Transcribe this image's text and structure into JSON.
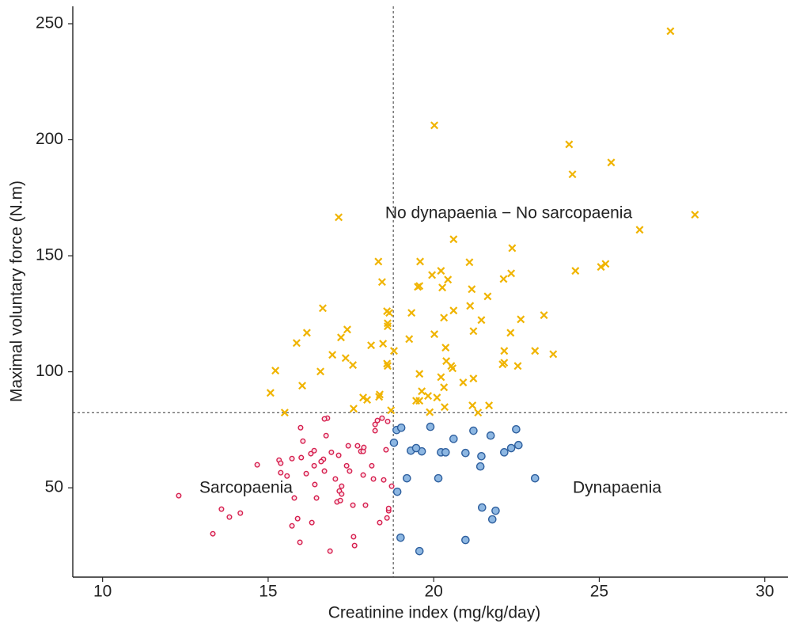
{
  "chart_data": {
    "type": "scatter",
    "xlabel": "Creatinine index (mg/kg/day)",
    "ylabel": "Maximal voluntary force (N.m)",
    "xlim": [
      9.1,
      30.7
    ],
    "ylim": [
      11.5,
      257.5
    ],
    "xticks": [
      10,
      15,
      20,
      25,
      30
    ],
    "yticks": [
      50,
      100,
      150,
      200,
      250
    ],
    "grid": false,
    "reference_lines": {
      "x": 18.78,
      "y": 82.4
    },
    "annotations": [
      "No dynapaenia − No sarcopaenia",
      "Sarcopaenia",
      "Dynapaenia"
    ],
    "series": [
      {
        "color": "#f0b400",
        "marker": "x",
        "x": [
          27.15,
          20.02,
          24.09,
          24.19,
          25.36,
          17.13,
          27.89,
          26.22,
          18.33,
          20.6,
          18.44,
          19.59,
          19.95,
          20.22,
          20.43,
          20.26,
          19.52,
          21.08,
          22.37,
          22.34,
          22.11,
          21.63,
          21.15,
          20.6,
          21.1,
          20.31,
          21.44,
          21.2,
          22.63,
          23.33,
          22.32,
          24.28,
          25.05,
          25.19,
          23.61,
          23.06,
          22.13,
          22.08,
          22.54,
          22.13,
          20.36,
          20.38,
          20.53,
          20.57,
          20.89,
          20.22,
          21.2,
          20.31,
          19.64,
          19.83,
          20.1,
          19.47,
          19.57,
          20.33,
          19.88,
          19.57,
          19.26,
          19.33,
          19.57,
          18.66,
          18.59,
          18.61,
          18.61,
          18.8,
          18.47,
          18.59,
          18.61,
          18.11,
          17.56,
          16.94,
          17.34,
          17.2,
          17.39,
          16.65,
          16.17,
          15.86,
          16.58,
          16.03,
          15.22,
          15.07,
          15.5,
          17.58,
          17.87,
          17.99,
          18.35,
          18.37,
          18.71,
          21.34,
          21.67,
          21.17,
          20.02
        ],
        "y": [
          246.8,
          206.2,
          198.0,
          185.1,
          190.2,
          166.6,
          167.7,
          161.2,
          147.5,
          157.1,
          138.7,
          147.5,
          141.7,
          143.5,
          139.7,
          136.3,
          136.6,
          147.2,
          153.3,
          142.4,
          140.0,
          132.5,
          135.6,
          126.4,
          128.4,
          123.3,
          122.3,
          117.5,
          122.6,
          124.4,
          116.8,
          143.5,
          145.2,
          146.5,
          107.6,
          109.0,
          109.0,
          103.2,
          102.5,
          103.9,
          110.4,
          104.6,
          102.5,
          101.5,
          95.4,
          97.7,
          97.1,
          93.3,
          91.6,
          89.6,
          88.9,
          87.5,
          87.5,
          84.8,
          82.6,
          99.1,
          114.1,
          125.4,
          137.0,
          125.4,
          126.1,
          120.9,
          119.6,
          109.0,
          112.1,
          103.5,
          102.5,
          111.4,
          102.9,
          107.3,
          105.9,
          114.8,
          118.2,
          127.4,
          116.8,
          112.4,
          100.1,
          94.0,
          100.5,
          90.9,
          82.4,
          84.1,
          88.9,
          87.9,
          89.2,
          90.2,
          83.4,
          82.4,
          85.5,
          85.5,
          116.2
        ]
      },
      {
        "color": "#8db7e2",
        "stroke": "#2e5f9e",
        "marker": "o",
        "x": [
          18.88,
          19.02,
          19.9,
          20.6,
          21.2,
          21.72,
          22.49,
          22.56,
          22.34,
          22.13,
          21.44,
          21.41,
          20.96,
          20.22,
          20.36,
          19.64,
          19.31,
          19.47,
          19.19,
          20.14,
          23.06,
          18.8,
          18.9,
          21.46,
          21.87,
          21.77,
          19.0,
          20.96,
          19.57
        ],
        "y": [
          74.9,
          75.9,
          76.3,
          71.1,
          74.6,
          72.5,
          75.2,
          68.4,
          67.1,
          65.3,
          63.6,
          59.2,
          65.0,
          65.3,
          65.3,
          65.7,
          66.0,
          67.1,
          54.1,
          54.1,
          54.1,
          69.4,
          48.3,
          41.5,
          40.1,
          36.4,
          28.5,
          27.5,
          22.7
        ]
      },
      {
        "color": "#fce0ea",
        "stroke": "#d6204e",
        "marker": "o",
        "x": [
          12.3,
          13.33,
          13.59,
          13.83,
          14.16,
          14.67,
          15.33,
          15.38,
          15.57,
          15.79,
          15.89,
          15.96,
          15.98,
          16.05,
          16.0,
          16.15,
          16.29,
          16.32,
          16.39,
          16.39,
          16.41,
          16.46,
          16.7,
          16.67,
          16.75,
          16.79,
          16.7,
          16.87,
          16.91,
          17.03,
          17.08,
          17.13,
          17.15,
          17.18,
          17.22,
          17.22,
          17.37,
          17.42,
          17.46,
          17.58,
          17.61,
          17.56,
          17.7,
          17.8,
          17.87,
          17.87,
          17.94,
          18.18,
          18.23,
          18.23,
          18.3,
          18.44,
          18.49,
          18.37,
          18.56,
          18.64,
          18.59,
          18.61,
          18.64,
          18.13,
          18.73,
          17.89,
          16.6,
          15.72,
          15.72,
          15.38
        ],
        "y": [
          46.6,
          30.2,
          40.8,
          37.4,
          39.1,
          59.9,
          61.9,
          60.6,
          55.1,
          45.6,
          36.7,
          26.5,
          75.9,
          70.1,
          63.0,
          56.1,
          64.7,
          35.0,
          66.0,
          59.5,
          51.4,
          45.6,
          57.2,
          62.3,
          72.5,
          80.0,
          79.7,
          22.7,
          65.3,
          53.8,
          43.9,
          64.0,
          48.6,
          44.5,
          50.7,
          47.3,
          59.5,
          68.1,
          57.2,
          28.9,
          25.1,
          42.5,
          68.1,
          65.7,
          65.7,
          55.5,
          42.5,
          53.8,
          74.6,
          77.3,
          79.0,
          80.0,
          53.4,
          35.0,
          66.4,
          40.1,
          37.0,
          78.6,
          41.1,
          59.5,
          50.7,
          67.4,
          61.3,
          62.6,
          33.6,
          56.5
        ]
      }
    ]
  }
}
